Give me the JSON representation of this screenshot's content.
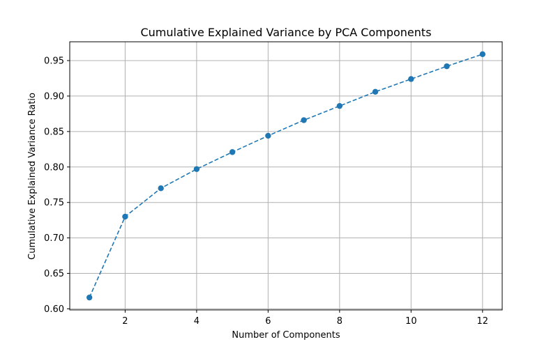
{
  "chart_data": {
    "type": "line",
    "title": "Cumulative Explained Variance by PCA Components",
    "xlabel": "Number of Components",
    "ylabel": "Cumulative Explained Variance Ratio",
    "xlim": [
      0.45,
      12.55
    ],
    "ylim": [
      0.5985,
      0.9765
    ],
    "xticks": [
      2,
      4,
      6,
      8,
      10,
      12
    ],
    "xtick_labels": [
      "2",
      "4",
      "6",
      "8",
      "10",
      "12"
    ],
    "yticks": [
      0.6,
      0.65,
      0.7,
      0.75,
      0.8,
      0.85,
      0.9,
      0.95
    ],
    "ytick_labels": [
      "0.60",
      "0.65",
      "0.70",
      "0.75",
      "0.80",
      "0.85",
      "0.90",
      "0.95"
    ],
    "grid": true,
    "line_style": "dashed",
    "marker": "circle",
    "color": "#1f77b4",
    "series": [
      {
        "x": [
          1,
          2,
          3,
          4,
          5,
          6,
          7,
          8,
          9,
          10,
          11,
          12
        ],
        "values": [
          0.616,
          0.73,
          0.77,
          0.797,
          0.821,
          0.844,
          0.866,
          0.886,
          0.906,
          0.924,
          0.942,
          0.959
        ]
      }
    ]
  }
}
